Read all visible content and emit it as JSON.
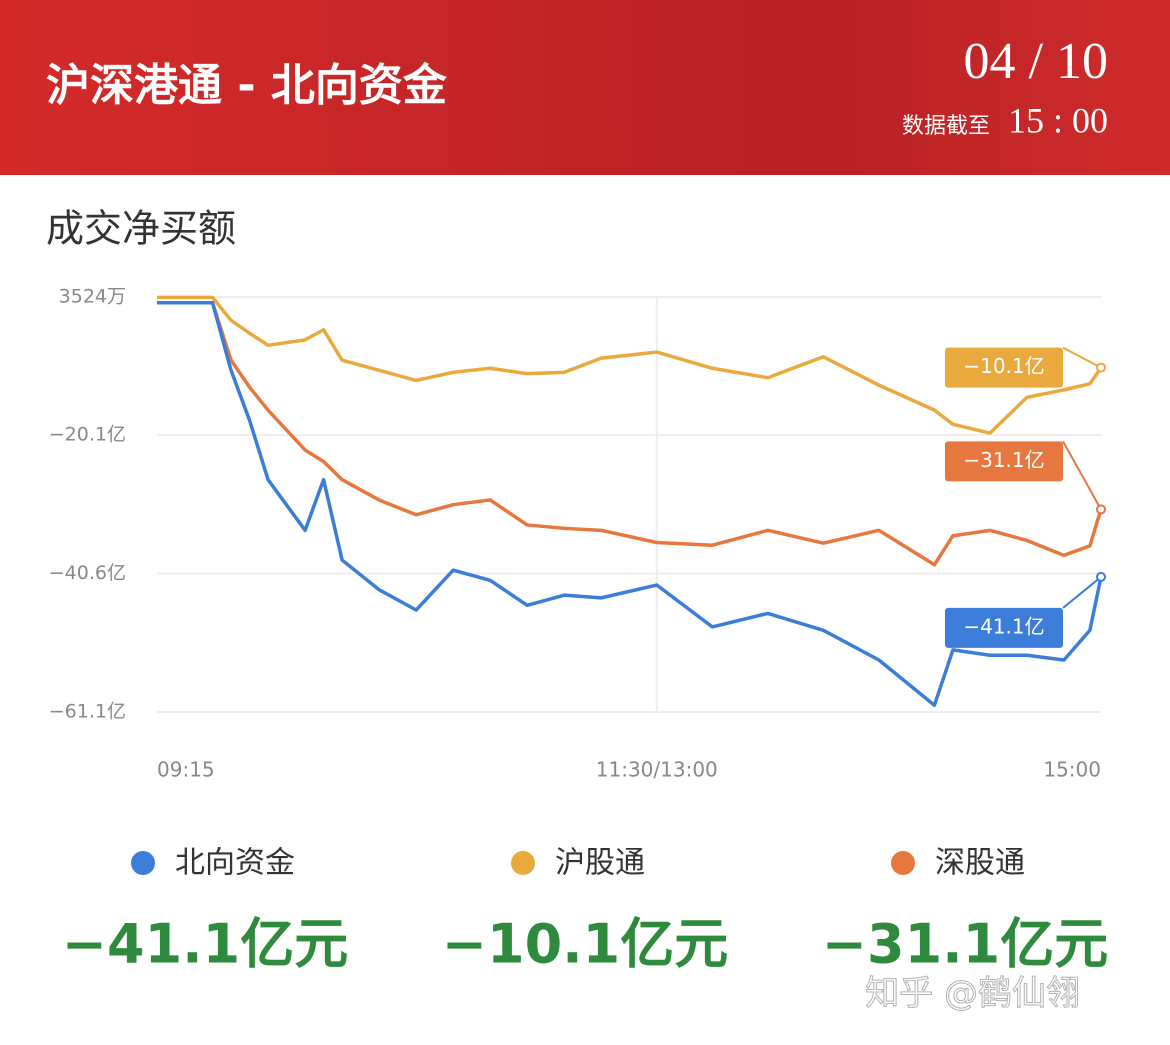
{
  "header": {
    "title": "沪深港通 - 北向资金",
    "date": "04 / 10",
    "as_of_label": "数据截至",
    "as_of_time": "15 : 00"
  },
  "chart_data": {
    "type": "line",
    "title": "成交净买额",
    "x": [
      0,
      15,
      20,
      25,
      30,
      40,
      45,
      50,
      60,
      70,
      80,
      90,
      100,
      110,
      120,
      135,
      150,
      165,
      180,
      195,
      210,
      215,
      225,
      235,
      245,
      252,
      255
    ],
    "xlim": [
      0,
      255
    ],
    "xticks": [
      {
        "value": 0,
        "label": "09:15"
      },
      {
        "value": 135,
        "label": "11:30/13:00"
      },
      {
        "value": 255,
        "label": "15:00"
      }
    ],
    "ylim": [
      -61.1,
      0.3524
    ],
    "yticks": [
      {
        "value": 0.3524,
        "label": "3524万"
      },
      {
        "value": -20.1,
        "label": "−20.1亿"
      },
      {
        "value": -40.6,
        "label": "−40.6亿"
      },
      {
        "value": -61.1,
        "label": "−61.1亿"
      }
    ],
    "grid": true,
    "series": [
      {
        "name": "北向资金",
        "color": "#3b7dd8",
        "values": [
          -0.5,
          -0.5,
          -10.5,
          -17.9,
          -26.7,
          -34.2,
          -26.7,
          -38.6,
          -43.0,
          -46.0,
          -40.1,
          -41.6,
          -45.3,
          -43.8,
          -44.2,
          -42.3,
          -48.5,
          -46.5,
          -49.0,
          -53.4,
          -60.1,
          -51.9,
          -52.7,
          -52.7,
          -53.4,
          -49.0,
          -41.1
        ],
        "value_labels": [
          null,
          null,
          null,
          null,
          null,
          null,
          null,
          null,
          null,
          null,
          null,
          null,
          null,
          null,
          null,
          null,
          null,
          null,
          null,
          null,
          null,
          null,
          null,
          null,
          null,
          null,
          "−41.1亿"
        ]
      },
      {
        "name": "沪股通",
        "color": "#eaa93c",
        "values": [
          0.3,
          0.3,
          -3.1,
          -5.0,
          -6.8,
          -6.0,
          -4.5,
          -9.0,
          -10.5,
          -12.0,
          -10.8,
          -10.2,
          -11.0,
          -10.8,
          -8.7,
          -7.8,
          -10.2,
          -11.6,
          -8.5,
          -12.7,
          -16.4,
          -18.5,
          -19.8,
          -14.5,
          -13.4,
          -12.5,
          -10.1
        ],
        "value_labels": [
          null,
          null,
          null,
          null,
          null,
          null,
          null,
          null,
          null,
          null,
          null,
          null,
          null,
          null,
          null,
          null,
          null,
          null,
          null,
          null,
          null,
          null,
          null,
          null,
          null,
          null,
          "−10.1亿"
        ]
      },
      {
        "name": "深股通",
        "color": "#e6773f",
        "values": [
          -0.5,
          -0.5,
          -9.0,
          -13.0,
          -16.4,
          -22.3,
          -24.0,
          -26.7,
          -29.7,
          -31.9,
          -30.4,
          -29.7,
          -33.4,
          -33.9,
          -34.2,
          -36.0,
          -36.4,
          -34.2,
          -36.1,
          -34.2,
          -39.3,
          -35.0,
          -34.2,
          -35.7,
          -37.9,
          -36.5,
          -31.1
        ],
        "value_labels": [
          null,
          null,
          null,
          null,
          null,
          null,
          null,
          null,
          null,
          null,
          null,
          null,
          null,
          null,
          null,
          null,
          null,
          null,
          null,
          null,
          null,
          null,
          null,
          null,
          null,
          null,
          "−31.1亿"
        ]
      }
    ]
  },
  "summary": [
    "−41.1亿元",
    "−10.1亿元",
    "−31.1亿元"
  ],
  "watermark": "知乎 @鹤仙翎"
}
